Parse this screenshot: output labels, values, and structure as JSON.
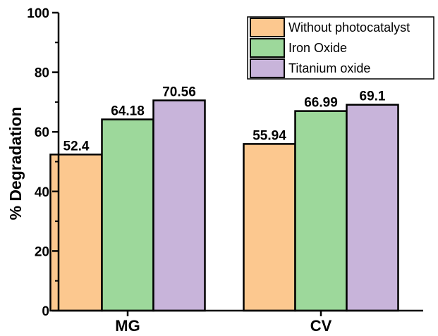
{
  "chart_data": {
    "type": "bar",
    "categories": [
      "MG",
      "CV"
    ],
    "series": [
      {
        "name": "Without photocatalyst",
        "values": [
          52.4,
          55.94
        ],
        "color": "#FCC88F"
      },
      {
        "name": "Iron Oxide",
        "values": [
          64.18,
          66.99
        ],
        "color": "#9DD89B"
      },
      {
        "name": "Titanium oxide",
        "values": [
          70.56,
          69.1
        ],
        "color": "#C8B4DA"
      }
    ],
    "data_labels": [
      [
        "52.4",
        "55.94"
      ],
      [
        "64.18",
        "66.99"
      ],
      [
        "70.56",
        "69.1"
      ]
    ],
    "ylabel": "% Degradation",
    "xlabel": "",
    "ylim": [
      0,
      100
    ],
    "yticks": [
      0,
      20,
      40,
      60,
      80,
      100
    ],
    "grid": false,
    "legend_position": "top-right"
  }
}
